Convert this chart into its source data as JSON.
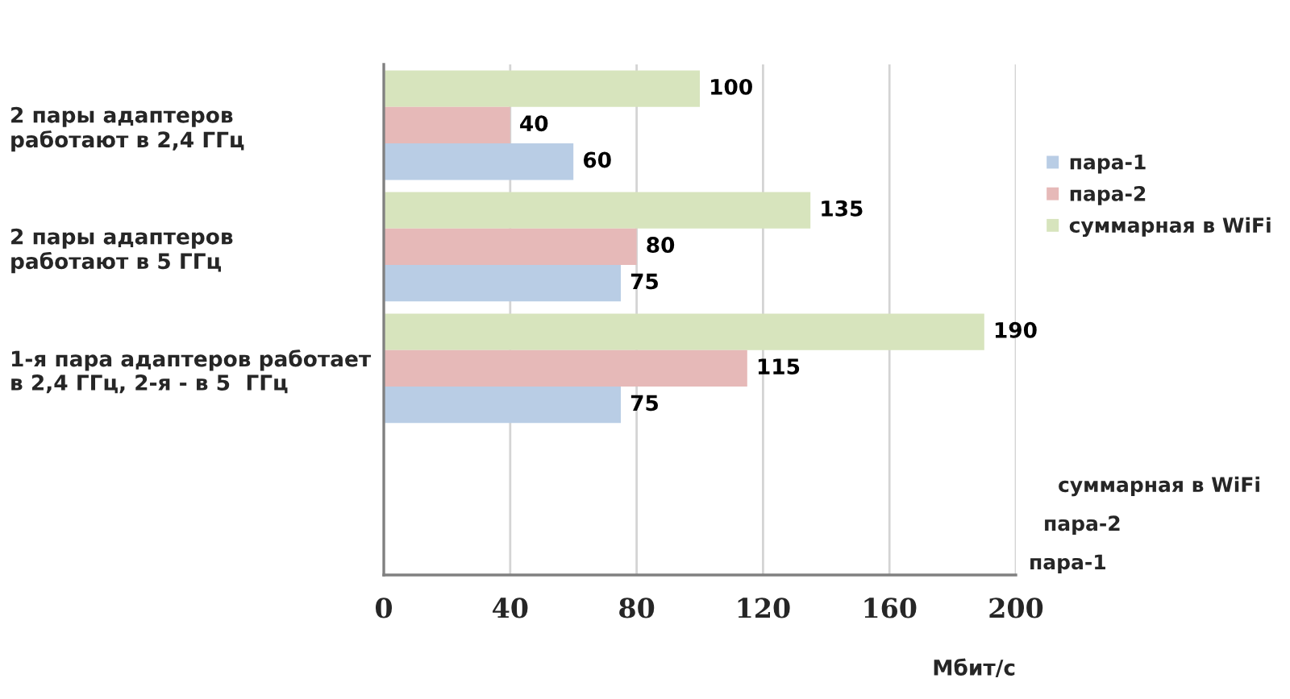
{
  "chart_data": {
    "type": "bar",
    "orientation": "horizontal",
    "categories": [
      "2 пары адаптеров\nработают в 2,4 ГГц",
      "2 пары адаптеров\nработают в 5 ГГц",
      "1-я пара адаптеров работает\nв 2,4 ГГц, 2-я - в 5  ГГц"
    ],
    "series": [
      {
        "name": "пара-1",
        "color": "#b9cde5",
        "values": [
          60,
          75,
          75
        ]
      },
      {
        "name": "пара-2",
        "color": "#e6b9b8",
        "values": [
          40,
          80,
          115
        ]
      },
      {
        "name": "суммарная в WiFi",
        "color": "#d7e4bd",
        "values": [
          100,
          135,
          190
        ]
      }
    ],
    "xlim": [
      0,
      200
    ],
    "xticks": [
      0,
      40,
      80,
      120,
      160,
      200
    ],
    "xlabel": "Мбит/с",
    "data_labels": true,
    "grid": "x",
    "legend": "right"
  }
}
